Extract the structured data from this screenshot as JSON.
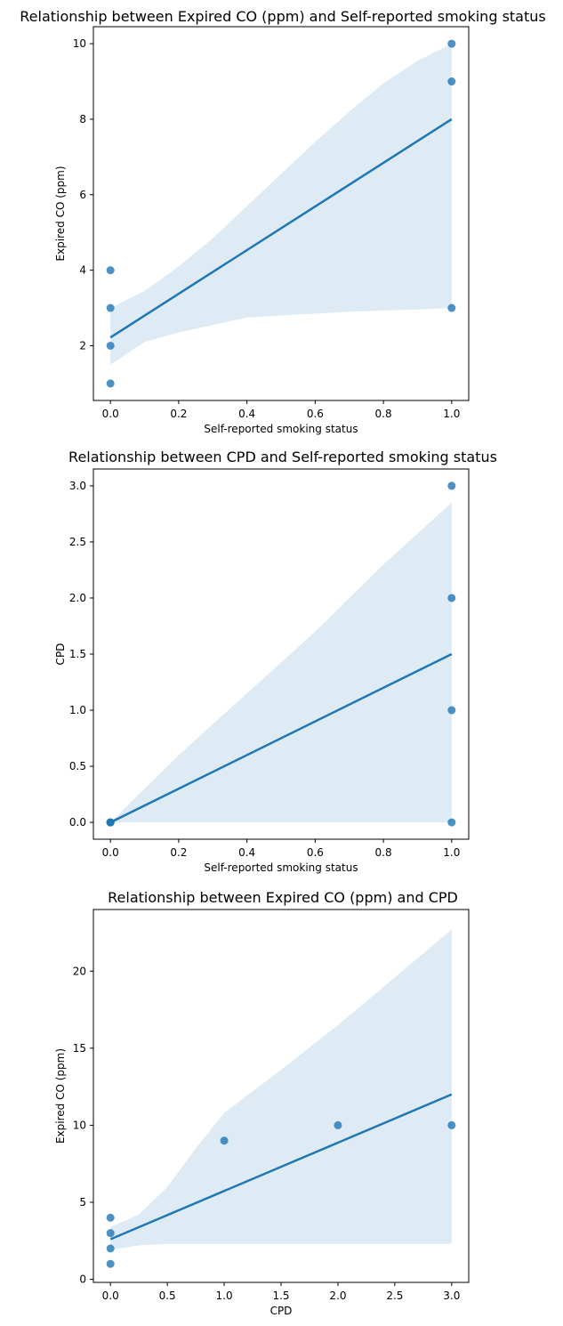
{
  "chart_data": [
    {
      "type": "scatter",
      "title": "Relationship between Expired CO (ppm) and Self-reported smoking status",
      "xlabel": "Self-reported smoking status",
      "ylabel": "Expired CO (ppm)",
      "xlim": [
        -0.05,
        1.05
      ],
      "ylim": [
        0.55,
        10.45
      ],
      "xticks": [
        0.0,
        0.2,
        0.4,
        0.6,
        0.8,
        1.0
      ],
      "xtick_labels": [
        "0.0",
        "0.2",
        "0.4",
        "0.6",
        "0.8",
        "1.0"
      ],
      "yticks": [
        2,
        4,
        6,
        8,
        10
      ],
      "ytick_labels": [
        "2",
        "4",
        "6",
        "8",
        "10"
      ],
      "grid": false,
      "colors": {
        "points": "#1f77b4",
        "line": "#1f77b4",
        "band": "#1f77b4"
      },
      "points": {
        "x": [
          0,
          0,
          0,
          0,
          1,
          1,
          1
        ],
        "y": [
          1,
          2,
          3,
          4,
          3,
          9,
          10
        ]
      },
      "regression": {
        "x": [
          0,
          1
        ],
        "y": [
          2.22,
          8.0
        ]
      },
      "ci_band": {
        "x": [
          0,
          0.1,
          0.2,
          0.3,
          0.4,
          0.5,
          0.6,
          0.7,
          0.8,
          0.9,
          1.0
        ],
        "lower": [
          1.5,
          2.1,
          2.35,
          2.55,
          2.75,
          2.8,
          2.85,
          2.9,
          2.93,
          2.96,
          3.0
        ],
        "upper": [
          3.0,
          3.45,
          4.1,
          4.85,
          5.7,
          6.55,
          7.4,
          8.2,
          8.95,
          9.55,
          10.0
        ]
      }
    },
    {
      "type": "scatter",
      "title": "Relationship between CPD and Self-reported smoking status",
      "xlabel": "Self-reported smoking status",
      "ylabel": "CPD",
      "xlim": [
        -0.05,
        1.05
      ],
      "ylim": [
        -0.15,
        3.15
      ],
      "xticks": [
        0.0,
        0.2,
        0.4,
        0.6,
        0.8,
        1.0
      ],
      "xtick_labels": [
        "0.0",
        "0.2",
        "0.4",
        "0.6",
        "0.8",
        "1.0"
      ],
      "yticks": [
        0.0,
        0.5,
        1.0,
        1.5,
        2.0,
        2.5,
        3.0
      ],
      "ytick_labels": [
        "0.0",
        "0.5",
        "1.0",
        "1.5",
        "2.0",
        "2.5",
        "3.0"
      ],
      "grid": false,
      "colors": {
        "points": "#1f77b4",
        "line": "#1f77b4",
        "band": "#1f77b4"
      },
      "points": {
        "x": [
          0,
          0,
          0,
          0,
          1,
          1,
          1,
          1
        ],
        "y": [
          0,
          0,
          0,
          0,
          0,
          1,
          2,
          3
        ]
      },
      "regression": {
        "x": [
          0,
          1
        ],
        "y": [
          0.0,
          1.5
        ]
      },
      "ci_band": {
        "x": [
          0,
          0.05,
          0.2,
          0.4,
          0.6,
          0.8,
          1.0
        ],
        "lower": [
          0.0,
          0.0,
          0.0,
          0.0,
          0.0,
          0.0,
          0.0
        ],
        "upper": [
          0.0,
          0.15,
          0.6,
          1.15,
          1.7,
          2.3,
          2.85
        ]
      }
    },
    {
      "type": "scatter",
      "title": "Relationship between Expired CO (ppm) and CPD",
      "xlabel": "CPD",
      "ylabel": "Expired CO (ppm)",
      "xlim": [
        -0.15,
        3.15
      ],
      "ylim": [
        -0.2,
        24
      ],
      "xticks": [
        0.0,
        0.5,
        1.0,
        1.5,
        2.0,
        2.5,
        3.0
      ],
      "xtick_labels": [
        "0.0",
        "0.5",
        "1.0",
        "1.5",
        "2.0",
        "2.5",
        "3.0"
      ],
      "yticks": [
        0,
        5,
        10,
        15,
        20
      ],
      "ytick_labels": [
        "0",
        "5",
        "10",
        "15",
        "20"
      ],
      "grid": false,
      "colors": {
        "points": "#1f77b4",
        "line": "#1f77b4",
        "band": "#1f77b4"
      },
      "points": {
        "x": [
          0,
          0,
          0,
          0,
          1,
          2,
          3
        ],
        "y": [
          1,
          2,
          3,
          4,
          9,
          10,
          10
        ]
      },
      "regression": {
        "x": [
          0,
          3
        ],
        "y": [
          2.6,
          12.0
        ]
      },
      "ci_band": {
        "x": [
          0,
          0.25,
          0.5,
          0.75,
          1.0,
          1.5,
          2.0,
          2.5,
          3.0
        ],
        "lower": [
          1.9,
          2.2,
          2.3,
          2.3,
          2.3,
          2.3,
          2.3,
          2.3,
          2.3
        ],
        "upper": [
          3.4,
          4.2,
          6.0,
          8.5,
          10.8,
          13.6,
          16.5,
          19.6,
          22.7
        ]
      }
    }
  ]
}
